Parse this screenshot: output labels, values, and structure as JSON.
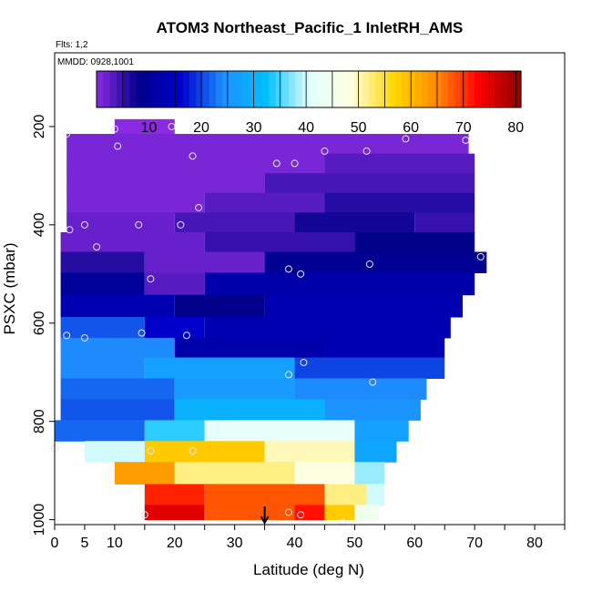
{
  "chart_data": {
    "type": "heatmap",
    "title": "ATOM3 Northeast_Pacific_1 InletRH_AMS",
    "flights_label": "Flts: 1,2",
    "dates_label": "MMDD: 0928,1001",
    "xlabel": "Latitude (deg N)",
    "ylabel": "PSXC (mbar)",
    "xlim": [
      0,
      85
    ],
    "ylim": [
      1010,
      50
    ],
    "y_reversed": true,
    "x_ticks": [
      0,
      5,
      10,
      20,
      30,
      40,
      50,
      60,
      70,
      80
    ],
    "x_minor_ticks": [
      15,
      25,
      35,
      45,
      55,
      65,
      75,
      85
    ],
    "y_ticks": [
      200,
      400,
      600,
      800,
      1000
    ],
    "colorbar": {
      "min": 0,
      "max": 81,
      "ticks": [
        10,
        20,
        30,
        40,
        50,
        60,
        70,
        80
      ],
      "colors": [
        "#8a2be2",
        "#00008b",
        "#0000cd",
        "#1e90ff",
        "#00bfff",
        "#e0ffff",
        "#ffffe0",
        "#ffd700",
        "#ff8c00",
        "#ff0000",
        "#8b0000"
      ]
    },
    "marker_latitude": 35,
    "grid": false,
    "rows": [
      {
        "p": 195,
        "segments": [
          [
            10,
            20,
            0
          ]
        ]
      },
      {
        "p": 235,
        "segments": [
          [
            2,
            69,
            1
          ]
        ]
      },
      {
        "p": 275,
        "segments": [
          [
            2,
            45,
            1
          ],
          [
            45,
            70,
            3
          ]
        ]
      },
      {
        "p": 315,
        "segments": [
          [
            2,
            35,
            1
          ],
          [
            35,
            70,
            4
          ]
        ]
      },
      {
        "p": 355,
        "segments": [
          [
            2,
            25,
            1
          ],
          [
            25,
            45,
            3
          ],
          [
            45,
            70,
            6
          ]
        ]
      },
      {
        "p": 395,
        "segments": [
          [
            2,
            20,
            2
          ],
          [
            20,
            40,
            4
          ],
          [
            40,
            60,
            7
          ],
          [
            60,
            70,
            5
          ]
        ]
      },
      {
        "p": 435,
        "segments": [
          [
            1,
            25,
            2
          ],
          [
            25,
            50,
            5
          ],
          [
            50,
            70,
            8
          ]
        ]
      },
      {
        "p": 475,
        "segments": [
          [
            1,
            15,
            6
          ],
          [
            15,
            35,
            2
          ],
          [
            35,
            72,
            9
          ]
        ]
      },
      {
        "p": 520,
        "segments": [
          [
            1,
            15,
            10
          ],
          [
            15,
            25,
            3
          ],
          [
            25,
            70,
            12
          ]
        ]
      },
      {
        "p": 565,
        "segments": [
          [
            1,
            20,
            13
          ],
          [
            20,
            35,
            8
          ],
          [
            35,
            68,
            13
          ]
        ]
      },
      {
        "p": 610,
        "segments": [
          [
            1,
            15,
            21
          ],
          [
            15,
            25,
            16
          ],
          [
            25,
            66,
            13
          ]
        ]
      },
      {
        "p": 650,
        "segments": [
          [
            1,
            20,
            24
          ],
          [
            20,
            45,
            12
          ],
          [
            45,
            65,
            13
          ]
        ]
      },
      {
        "p": 690,
        "segments": [
          [
            1,
            15,
            24
          ],
          [
            15,
            40,
            27
          ],
          [
            40,
            65,
            20
          ]
        ]
      },
      {
        "p": 735,
        "segments": [
          [
            1,
            20,
            22
          ],
          [
            20,
            40,
            26
          ],
          [
            40,
            62,
            24
          ]
        ]
      },
      {
        "p": 775,
        "segments": [
          [
            1,
            20,
            21
          ],
          [
            20,
            45,
            30
          ],
          [
            45,
            61,
            25
          ]
        ]
      },
      {
        "p": 820,
        "segments": [
          [
            0,
            15,
            22
          ],
          [
            15,
            25,
            34
          ],
          [
            25,
            50,
            42
          ],
          [
            50,
            59,
            27
          ]
        ]
      },
      {
        "p": 860,
        "segments": [
          [
            5,
            15,
            40
          ],
          [
            15,
            35,
            58
          ],
          [
            35,
            50,
            50
          ],
          [
            50,
            57,
            28
          ]
        ]
      },
      {
        "p": 905,
        "segments": [
          [
            10,
            20,
            63
          ],
          [
            20,
            40,
            52
          ],
          [
            40,
            50,
            48
          ],
          [
            50,
            55,
            38
          ]
        ]
      },
      {
        "p": 950,
        "segments": [
          [
            15,
            25,
            71
          ],
          [
            25,
            45,
            68
          ],
          [
            45,
            52,
            52
          ],
          [
            52,
            55,
            40
          ]
        ]
      },
      {
        "p": 990,
        "segments": [
          [
            15,
            25,
            75
          ],
          [
            25,
            40,
            68
          ],
          [
            40,
            45,
            72
          ],
          [
            45,
            50,
            58
          ],
          [
            50,
            54,
            45
          ]
        ]
      }
    ],
    "points": [
      [
        2,
        215
      ],
      [
        10,
        205
      ],
      [
        10.5,
        240
      ],
      [
        19.5,
        200
      ],
      [
        23,
        260
      ],
      [
        24,
        365
      ],
      [
        37,
        275
      ],
      [
        40,
        275
      ],
      [
        45,
        250
      ],
      [
        52,
        250
      ],
      [
        58.5,
        225
      ],
      [
        68.5,
        228
      ],
      [
        2.5,
        410
      ],
      [
        5,
        400
      ],
      [
        7,
        445
      ],
      [
        14,
        400
      ],
      [
        21,
        400
      ],
      [
        16,
        510
      ],
      [
        39,
        490
      ],
      [
        41,
        500
      ],
      [
        52.5,
        480
      ],
      [
        71,
        465
      ],
      [
        2,
        625
      ],
      [
        5,
        630
      ],
      [
        14.5,
        620
      ],
      [
        22,
        625
      ],
      [
        41.5,
        680
      ],
      [
        39,
        705
      ],
      [
        53,
        720
      ],
      [
        0,
        855
      ],
      [
        16,
        860
      ],
      [
        23,
        860
      ],
      [
        15,
        990
      ],
      [
        39,
        985
      ],
      [
        41,
        990
      ],
      [
        48,
        1005
      ]
    ]
  }
}
